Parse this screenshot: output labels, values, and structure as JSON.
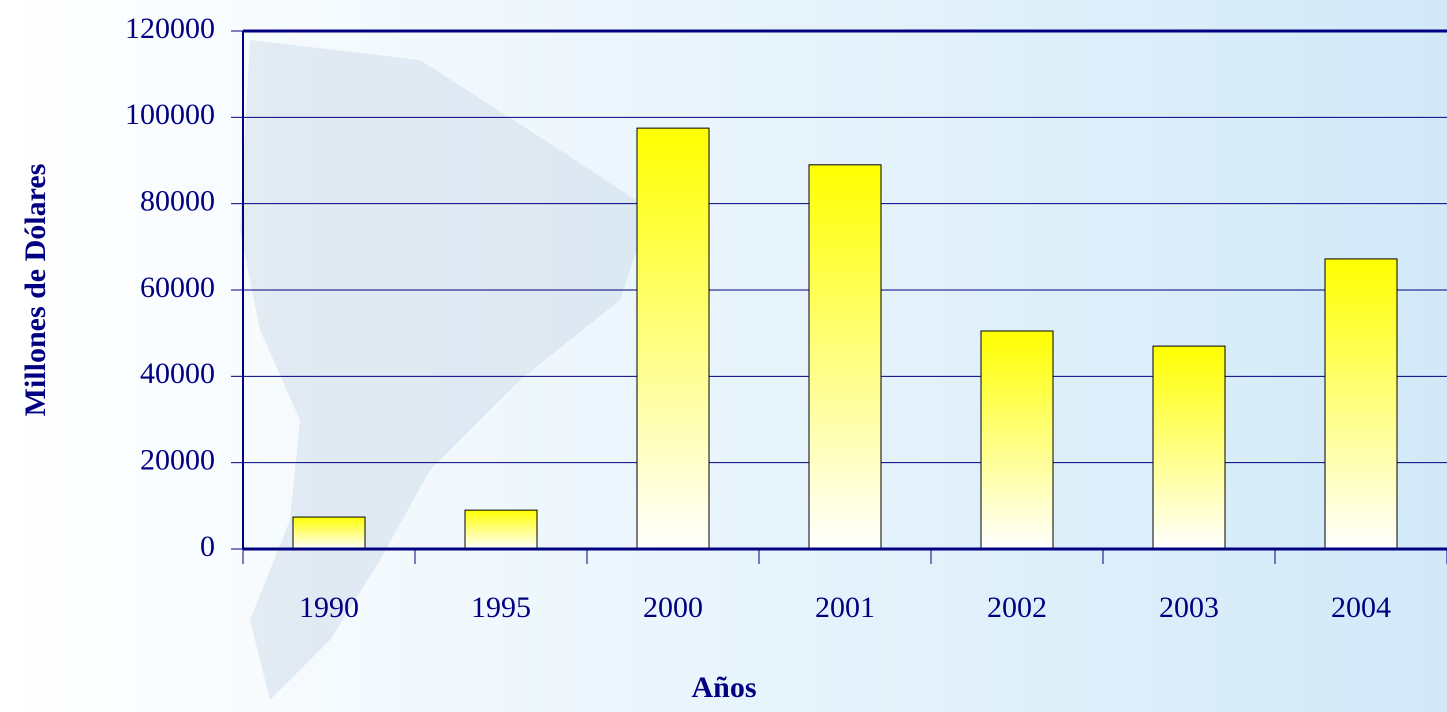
{
  "chart_data": {
    "type": "bar",
    "categories": [
      "1990",
      "1995",
      "2000",
      "2001",
      "2002",
      "2003",
      "2004"
    ],
    "values": [
      7400,
      9000,
      97500,
      89000,
      50500,
      47000,
      67200
    ],
    "xlabel": "Años",
    "ylabel": "Millones de Dólares",
    "ylim": [
      0,
      120000
    ],
    "yticks": [
      0,
      20000,
      40000,
      60000,
      80000,
      100000,
      120000
    ],
    "grid": true,
    "color": "#ffff00"
  }
}
